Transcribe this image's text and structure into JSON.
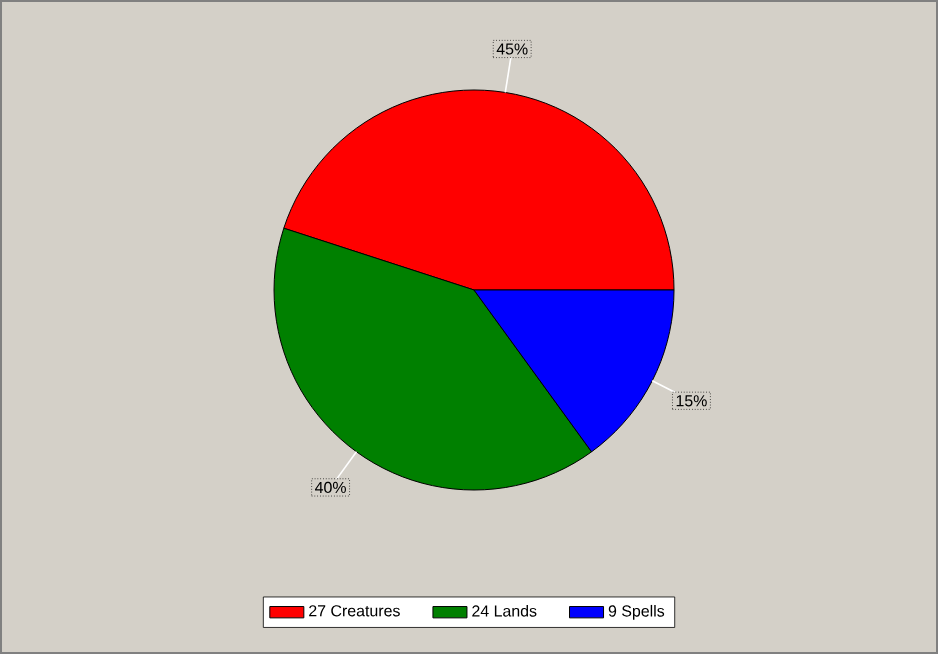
{
  "chart_data": {
    "type": "pie",
    "categories": [
      "27 Creatures",
      "24 Lands",
      "9 Spells"
    ],
    "values": [
      45,
      40,
      15
    ],
    "colors": [
      "#ff0000",
      "#008000",
      "#0000ff"
    ],
    "value_labels": [
      "45%",
      "40%",
      "15%"
    ],
    "legend": "bottom"
  }
}
